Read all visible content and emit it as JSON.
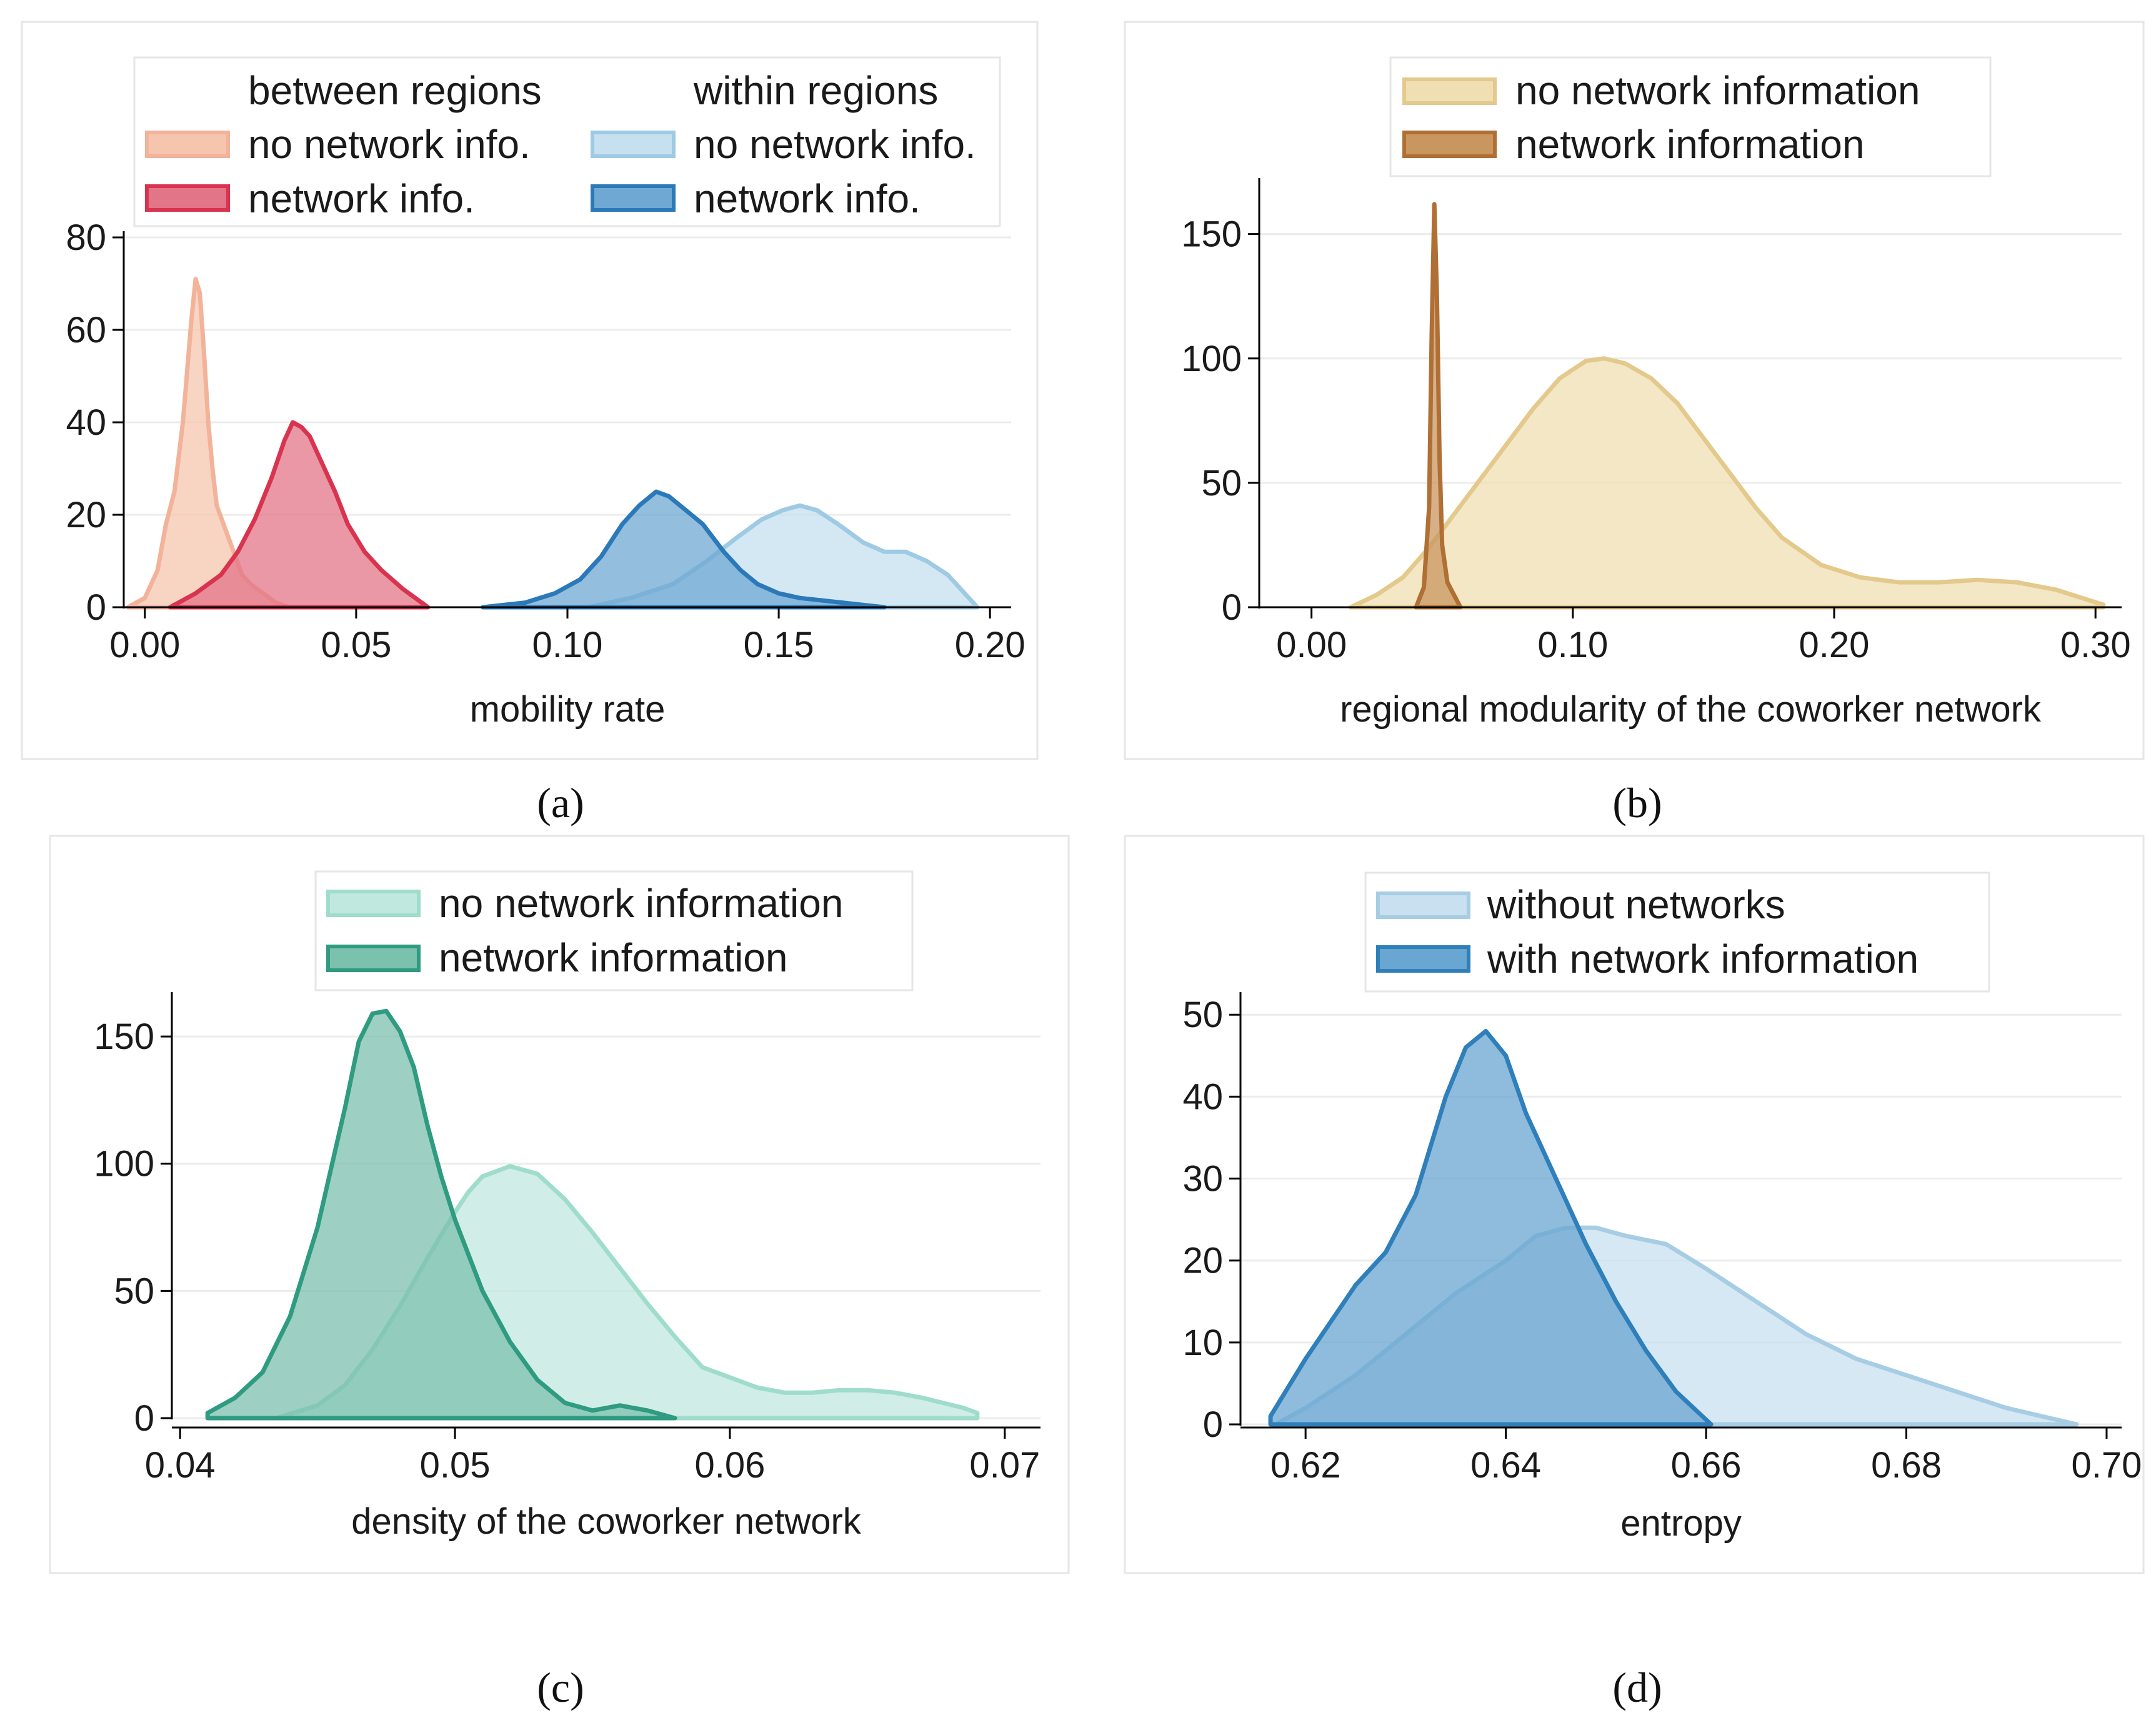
{
  "chart_data": [
    {
      "panel_label": "a",
      "type": "area",
      "xlabel": "mobility rate",
      "ylabel": "",
      "xlim": [
        -0.005,
        0.205
      ],
      "ylim": [
        0,
        80
      ],
      "xticks": [
        "0.00",
        "0.05",
        "0.10",
        "0.15",
        "0.20"
      ],
      "xtick_values": [
        0,
        0.05,
        0.1,
        0.15,
        0.2
      ],
      "yticks": [
        "0",
        "20",
        "40",
        "60",
        "80"
      ],
      "ytick_values": [
        0,
        20,
        40,
        60,
        80
      ],
      "grid": true,
      "legend": {
        "position": "top",
        "group_headers": [
          "between regions",
          "within regions"
        ]
      },
      "series": [
        {
          "name": "no network info.",
          "group": "between regions",
          "fill": "#f6c5ad",
          "stroke": "#f2b39a",
          "x": [
            -0.004,
            0.0,
            0.003,
            0.005,
            0.007,
            0.009,
            0.011,
            0.012,
            0.013,
            0.014,
            0.015,
            0.016,
            0.017,
            0.019,
            0.021,
            0.023,
            0.025,
            0.028,
            0.031,
            0.034
          ],
          "y": [
            0,
            2,
            8,
            18,
            25,
            40,
            62,
            71,
            68,
            55,
            40,
            30,
            22,
            17,
            12,
            7,
            5,
            3,
            1,
            0
          ]
        },
        {
          "name": "network info.",
          "group": "between regions",
          "fill": "#e37588",
          "stroke": "#d9344f",
          "x": [
            0.006,
            0.012,
            0.018,
            0.022,
            0.026,
            0.03,
            0.033,
            0.035,
            0.037,
            0.039,
            0.042,
            0.045,
            0.048,
            0.052,
            0.056,
            0.061,
            0.067
          ],
          "y": [
            0,
            3,
            7,
            12,
            19,
            28,
            36,
            40,
            39,
            37,
            31,
            25,
            18,
            12,
            8,
            4,
            0
          ]
        },
        {
          "name": "no network info.",
          "group": "within regions",
          "fill": "#c6e0ef",
          "stroke": "#9ecae3",
          "x": [
            0.105,
            0.115,
            0.125,
            0.133,
            0.14,
            0.146,
            0.151,
            0.155,
            0.159,
            0.164,
            0.17,
            0.175,
            0.18,
            0.185,
            0.19,
            0.197
          ],
          "y": [
            0,
            2,
            5,
            10,
            15,
            19,
            21,
            22,
            21,
            18,
            14,
            12,
            12,
            10,
            7,
            0
          ]
        },
        {
          "name": "network info.",
          "group": "within regions",
          "fill": "#6fa8d3",
          "stroke": "#2b79b8",
          "x": [
            0.08,
            0.09,
            0.097,
            0.103,
            0.108,
            0.113,
            0.117,
            0.121,
            0.124,
            0.128,
            0.132,
            0.137,
            0.141,
            0.145,
            0.15,
            0.155,
            0.165,
            0.175
          ],
          "y": [
            0,
            1,
            3,
            6,
            11,
            18,
            22,
            25,
            24,
            21,
            18,
            12,
            8,
            5,
            3,
            2,
            1,
            0
          ]
        }
      ]
    },
    {
      "panel_label": "b",
      "type": "area",
      "xlabel": "regional modularity of the coworker network",
      "ylabel": "",
      "xlim": [
        -0.02,
        0.31
      ],
      "ylim": [
        0,
        170
      ],
      "xticks": [
        "0.00",
        "0.10",
        "0.20",
        "0.30"
      ],
      "xtick_values": [
        0,
        0.1,
        0.2,
        0.3
      ],
      "yticks": [
        "0",
        "50",
        "100",
        "150"
      ],
      "ytick_values": [
        0,
        50,
        100,
        150
      ],
      "grid": true,
      "legend": {
        "position": "top"
      },
      "series": [
        {
          "name": "no network information",
          "fill": "#efdfb3",
          "stroke": "#e3c98b",
          "x": [
            0.015,
            0.025,
            0.035,
            0.045,
            0.055,
            0.065,
            0.075,
            0.085,
            0.095,
            0.105,
            0.112,
            0.12,
            0.13,
            0.14,
            0.15,
            0.16,
            0.17,
            0.18,
            0.195,
            0.21,
            0.225,
            0.24,
            0.255,
            0.27,
            0.285,
            0.303
          ],
          "y": [
            0,
            5,
            12,
            24,
            38,
            52,
            66,
            80,
            92,
            99,
            100,
            98,
            92,
            82,
            68,
            54,
            40,
            28,
            17,
            12,
            10,
            10,
            11,
            10,
            7,
            1
          ]
        },
        {
          "name": "network information",
          "fill": "#c9965f",
          "stroke": "#b06f34",
          "x": [
            0.04,
            0.043,
            0.045,
            0.046,
            0.047,
            0.048,
            0.049,
            0.05,
            0.052,
            0.055,
            0.057
          ],
          "y": [
            0,
            8,
            40,
            110,
            162,
            125,
            60,
            25,
            10,
            4,
            0
          ]
        }
      ]
    },
    {
      "panel_label": "c",
      "type": "area",
      "xlabel": "density of the coworker network",
      "ylabel": "",
      "xlim": [
        0.0397,
        0.0713
      ],
      "ylim": [
        0,
        165
      ],
      "xticks": [
        "0.04",
        "0.05",
        "0.06",
        "0.07"
      ],
      "xtick_values": [
        0.04,
        0.05,
        0.06,
        0.07
      ],
      "yticks": [
        "0",
        "50",
        "100",
        "150"
      ],
      "ytick_values": [
        0,
        50,
        100,
        150
      ],
      "grid": true,
      "legend": {
        "position": "top"
      },
      "series": [
        {
          "name": "no network information",
          "fill": "#c0e8df",
          "stroke": "#9fdccc",
          "x": [
            0.0435,
            0.045,
            0.046,
            0.047,
            0.048,
            0.049,
            0.05,
            0.0505,
            0.051,
            0.052,
            0.053,
            0.054,
            0.055,
            0.056,
            0.057,
            0.058,
            0.059,
            0.06,
            0.061,
            0.062,
            0.063,
            0.064,
            0.065,
            0.066,
            0.067,
            0.0685,
            0.069
          ],
          "y": [
            0,
            5,
            13,
            27,
            44,
            63,
            81,
            89,
            95,
            99,
            96,
            86,
            73,
            59,
            45,
            32,
            20,
            16,
            12,
            10,
            10,
            11,
            11,
            10,
            8,
            4,
            2
          ]
        },
        {
          "name": "network information",
          "fill": "#7cc0ae",
          "stroke": "#2f9b80",
          "x": [
            0.041,
            0.042,
            0.043,
            0.044,
            0.045,
            0.046,
            0.0465,
            0.047,
            0.0475,
            0.048,
            0.0485,
            0.049,
            0.0495,
            0.05,
            0.051,
            0.052,
            0.053,
            0.054,
            0.055,
            0.056,
            0.057,
            0.058
          ],
          "y": [
            2,
            8,
            18,
            40,
            75,
            122,
            148,
            159,
            160,
            152,
            138,
            115,
            95,
            78,
            50,
            30,
            15,
            6,
            3,
            5,
            3,
            0
          ]
        }
      ]
    },
    {
      "panel_label": "d",
      "type": "area",
      "xlabel": "entropy",
      "ylabel": "",
      "xlim": [
        0.6135,
        0.7015
      ],
      "ylim": [
        0,
        52
      ],
      "xticks": [
        "0.62",
        "0.64",
        "0.66",
        "0.68",
        "0.70"
      ],
      "xtick_values": [
        0.62,
        0.64,
        0.66,
        0.68,
        0.7
      ],
      "yticks": [
        "0",
        "10",
        "20",
        "30",
        "40",
        "50"
      ],
      "ytick_values": [
        0,
        10,
        20,
        30,
        40,
        50
      ],
      "grid": true,
      "legend": {
        "position": "top"
      },
      "series": [
        {
          "name": "without networks",
          "fill": "#c8e0ef",
          "stroke": "#a6cde4",
          "x": [
            0.617,
            0.62,
            0.625,
            0.63,
            0.635,
            0.64,
            0.643,
            0.646,
            0.649,
            0.652,
            0.656,
            0.66,
            0.665,
            0.67,
            0.675,
            0.68,
            0.685,
            0.69,
            0.697
          ],
          "y": [
            0,
            2,
            6,
            11,
            16,
            20,
            23,
            24,
            24,
            23,
            22,
            19,
            15,
            11,
            8,
            6,
            4,
            2,
            0
          ]
        },
        {
          "name": "with network information",
          "fill": "#6aa6d2",
          "stroke": "#2f7fba",
          "x": [
            0.6165,
            0.62,
            0.625,
            0.628,
            0.631,
            0.634,
            0.636,
            0.638,
            0.64,
            0.642,
            0.645,
            0.648,
            0.651,
            0.654,
            0.657,
            0.6605
          ],
          "y": [
            1,
            8,
            17,
            21,
            28,
            40,
            46,
            48,
            45,
            38,
            30,
            22,
            15,
            9,
            4,
            0
          ]
        }
      ]
    }
  ],
  "captions": [
    "(a)",
    "(b)",
    "(c)",
    "(d)"
  ]
}
